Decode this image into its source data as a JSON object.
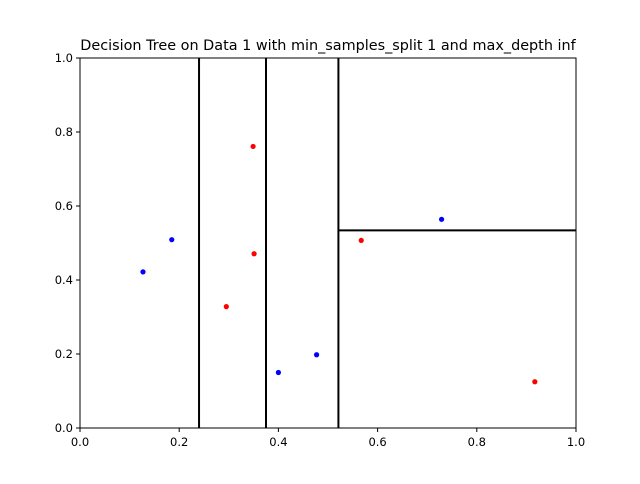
{
  "chart_data": {
    "type": "scatter",
    "title": "Decision Tree on Data 1 with min_samples_split 1 and max_depth inf",
    "xlabel": "",
    "ylabel": "",
    "xlim": [
      0.0,
      1.0
    ],
    "ylim": [
      0.0,
      1.0
    ],
    "grid": false,
    "x_ticks": [
      "0.0",
      "0.2",
      "0.4",
      "0.6",
      "0.8",
      "1.0"
    ],
    "y_ticks": [
      "0.0",
      "0.2",
      "0.4",
      "0.6",
      "0.8",
      "1.0"
    ],
    "series": [
      {
        "color": "#0000ff",
        "points": [
          {
            "x": 0.127,
            "y": 0.422
          },
          {
            "x": 0.185,
            "y": 0.509
          },
          {
            "x": 0.4,
            "y": 0.15
          },
          {
            "x": 0.477,
            "y": 0.198
          },
          {
            "x": 0.729,
            "y": 0.564
          }
        ]
      },
      {
        "color": "#ff0000",
        "points": [
          {
            "x": 0.349,
            "y": 0.761
          },
          {
            "x": 0.351,
            "y": 0.471
          },
          {
            "x": 0.295,
            "y": 0.328
          },
          {
            "x": 0.567,
            "y": 0.507
          },
          {
            "x": 0.917,
            "y": 0.125
          }
        ]
      }
    ],
    "split_lines": [
      {
        "orientation": "vertical",
        "x": 0.24,
        "y_range": [
          0.0,
          1.0
        ]
      },
      {
        "orientation": "vertical",
        "x": 0.375,
        "y_range": [
          0.0,
          1.0
        ]
      },
      {
        "orientation": "vertical",
        "x": 0.521,
        "y_range": [
          0.0,
          1.0
        ]
      },
      {
        "orientation": "horizontal",
        "y": 0.534,
        "x_range": [
          0.521,
          1.0
        ]
      }
    ]
  }
}
